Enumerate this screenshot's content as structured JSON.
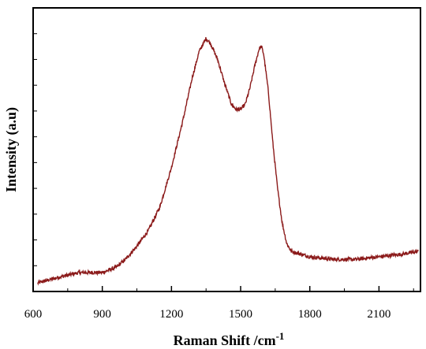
{
  "chart_data": {
    "type": "line",
    "xlabel": "Raman Shift /cm",
    "xlabel_superscript": "-1",
    "ylabel": "Intensity (a.u)",
    "xlim": [
      600,
      2280
    ],
    "ylim": [
      0,
      100
    ],
    "x_ticks": [
      600,
      900,
      1200,
      1500,
      1800,
      2100
    ],
    "x_tick_labels": [
      "600",
      "900",
      "1200",
      "1500",
      "1800",
      "2100"
    ],
    "y_tick_labels_shown": false,
    "grid": false,
    "legend": "none",
    "series_color": "#8b1a1a",
    "series": [
      {
        "x": [
          620,
          700,
          800,
          900,
          960,
          1000,
          1050,
          1100,
          1150,
          1200,
          1250,
          1290,
          1320,
          1350,
          1370,
          1400,
          1430,
          1460,
          1480,
          1500,
          1520,
          1540,
          1560,
          1580,
          1590,
          1600,
          1620,
          1640,
          1660,
          1680,
          1700,
          1720,
          1760,
          1800,
          1900,
          2000,
          2100,
          2200,
          2270
        ],
        "y": [
          2,
          4,
          6,
          6,
          8,
          11,
          16,
          22,
          31,
          46,
          64,
          80,
          90,
          95,
          93,
          87,
          78,
          70,
          68,
          68,
          70,
          76,
          84,
          91,
          92,
          89,
          75,
          55,
          38,
          25,
          17,
          14,
          13,
          12,
          11,
          11,
          12,
          13,
          14
        ]
      }
    ]
  }
}
